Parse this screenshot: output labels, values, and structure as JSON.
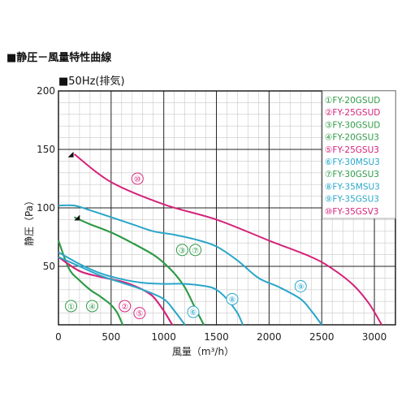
{
  "header": {
    "title": "■静圧－風量特性曲線"
  },
  "chart_data": {
    "type": "line",
    "subtitle": "■50Hz(排気)",
    "xlabel": "風量（m³/h）",
    "ylabel": "静圧（Pa）",
    "xlim": [
      0,
      3200
    ],
    "ylim": [
      0,
      200
    ],
    "xticks": [
      0,
      500,
      1000,
      1500,
      2000,
      2500,
      3000
    ],
    "yticks": [
      50,
      100,
      150,
      200
    ],
    "grid": true,
    "legend_position": "top-right",
    "colors": {
      "green": "#2f9a47",
      "magenta": "#d4237a",
      "cyan": "#2aa6c9"
    },
    "series": [
      {
        "name": "①FY-20GSUD",
        "color": "#2f9a47",
        "x": [
          0,
          100,
          200,
          300,
          400,
          500,
          560,
          610
        ],
        "y": [
          72,
          48,
          38,
          30,
          24,
          17,
          10,
          0
        ]
      },
      {
        "name": "②FY-25GSUD",
        "color": "#d4237a",
        "x": [
          0,
          200,
          400,
          600,
          700,
          800,
          900,
          1000,
          1080
        ],
        "y": [
          58,
          46,
          41,
          37,
          34,
          30,
          24,
          12,
          0
        ]
      },
      {
        "name": "③FY-30GSUD",
        "color": "#2f9a47",
        "x": [
          150,
          300,
          500,
          700,
          900,
          1000,
          1100,
          1200,
          1300,
          1380
        ],
        "y": [
          92,
          86,
          79,
          70,
          60,
          53,
          44,
          32,
          14,
          0
        ]
      },
      {
        "name": "④FY-20GSU3",
        "color": "#2f9a47",
        "x": [
          0,
          100,
          200,
          300,
          400,
          500,
          560,
          610
        ],
        "y": [
          72,
          48,
          38,
          30,
          24,
          17,
          10,
          0
        ]
      },
      {
        "name": "⑤FY-25GSU3",
        "color": "#d4237a",
        "x": [
          0,
          200,
          400,
          600,
          700,
          800,
          900,
          1000,
          1080
        ],
        "y": [
          58,
          46,
          41,
          37,
          34,
          30,
          24,
          12,
          0
        ]
      },
      {
        "name": "⑥FY-30MSU3",
        "color": "#2aa6c9",
        "x": [
          0,
          200,
          400,
          600,
          800,
          1000,
          1100,
          1200
        ],
        "y": [
          58,
          50,
          42,
          36,
          30,
          22,
          12,
          0
        ]
      },
      {
        "name": "⑦FY-30GSU3",
        "color": "#2f9a47",
        "x": [
          150,
          300,
          500,
          700,
          900,
          1000,
          1100,
          1200,
          1300,
          1380
        ],
        "y": [
          92,
          86,
          79,
          70,
          60,
          53,
          44,
          32,
          14,
          0
        ]
      },
      {
        "name": "⑧FY-35MSU3",
        "color": "#2aa6c9",
        "x": [
          0,
          200,
          400,
          600,
          800,
          1000,
          1200,
          1400,
          1500,
          1600,
          1700,
          1750
        ],
        "y": [
          62,
          52,
          44,
          39,
          36,
          35,
          35,
          33,
          30,
          22,
          10,
          0
        ]
      },
      {
        "name": "⑨FY-35GSU3",
        "color": "#2aa6c9",
        "x": [
          0,
          150,
          300,
          500,
          700,
          900,
          1100,
          1300,
          1500,
          1700,
          1900,
          2100,
          2300,
          2400,
          2500
        ],
        "y": [
          102,
          102,
          98,
          92,
          86,
          80,
          77,
          73,
          67,
          55,
          40,
          32,
          22,
          12,
          0
        ]
      },
      {
        "name": "⑩FY-35GSV3",
        "color": "#d4237a",
        "x": [
          150,
          500,
          1000,
          1500,
          2000,
          2400,
          2600,
          2800,
          2950,
          3070
        ],
        "y": [
          146,
          122,
          103,
          90,
          72,
          58,
          48,
          34,
          18,
          0
        ]
      }
    ],
    "curve_labels": [
      {
        "text": "⑩",
        "color": "#d4237a",
        "x": 750,
        "y": 125
      },
      {
        "text": "③",
        "color": "#2f9a47",
        "x": 1175,
        "y": 64
      },
      {
        "text": "⑦",
        "color": "#2f9a47",
        "x": 1300,
        "y": 64
      },
      {
        "text": "⑨",
        "color": "#2aa6c9",
        "x": 2300,
        "y": 33
      },
      {
        "text": "⑧",
        "color": "#2aa6c9",
        "x": 1650,
        "y": 22
      },
      {
        "text": "⑥",
        "color": "#2aa6c9",
        "x": 1280,
        "y": 11
      },
      {
        "text": "②",
        "color": "#d4237a",
        "x": 630,
        "y": 16
      },
      {
        "text": "⑤",
        "color": "#d4237a",
        "x": 770,
        "y": 10
      },
      {
        "text": "①",
        "color": "#2f9a47",
        "x": 120,
        "y": 16
      },
      {
        "text": "④",
        "color": "#2f9a47",
        "x": 320,
        "y": 16
      }
    ],
    "markers": [
      {
        "x": 120,
        "y": 146
      },
      {
        "x": 180,
        "y": 92
      }
    ]
  }
}
